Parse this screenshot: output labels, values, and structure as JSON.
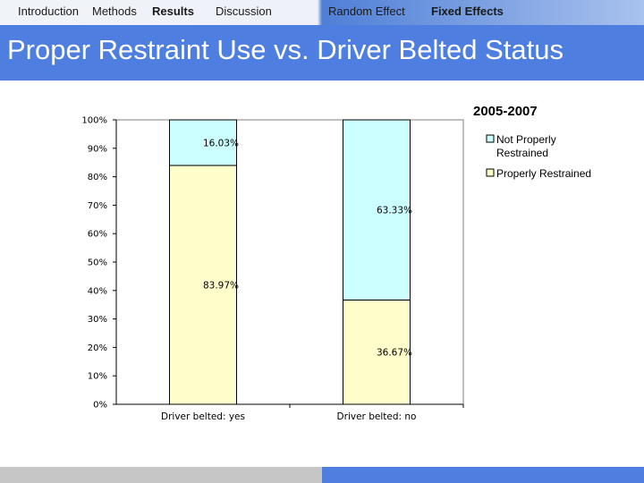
{
  "nav": {
    "introduction": "Introduction",
    "methods": "Methods",
    "results": "Results",
    "discussion": "Discussion",
    "random_effect": "Random Effect",
    "fixed_effects": "Fixed Effects"
  },
  "slide_title": "Proper Restraint Use vs. Driver Belted Status",
  "colors": {
    "title_bar": "#4d7ee0",
    "properly_restrained": "#ffffcc",
    "not_properly_restrained": "#ccffff"
  },
  "chart_data": {
    "type": "bar",
    "stacked": true,
    "title": "2005-2007",
    "categories": [
      "Driver belted: yes",
      "Driver belted: no"
    ],
    "series": [
      {
        "name": "Properly Restrained",
        "values": [
          83.97,
          36.67
        ],
        "labels": [
          "83.97%",
          "36.67%"
        ]
      },
      {
        "name": "Not Properly Restrained",
        "values": [
          16.03,
          63.33
        ],
        "labels": [
          "16.03%",
          "63.33%"
        ]
      }
    ],
    "legend": {
      "not_properly_line1": "Not Properly",
      "not_properly_line2": "Restrained",
      "properly": "Properly Restrained",
      "position": "right"
    },
    "yticks": [
      "0%",
      "10%",
      "20%",
      "30%",
      "40%",
      "50%",
      "60%",
      "70%",
      "80%",
      "90%",
      "100%"
    ],
    "ylim": [
      0,
      100
    ],
    "xlabel": "",
    "ylabel": ""
  }
}
